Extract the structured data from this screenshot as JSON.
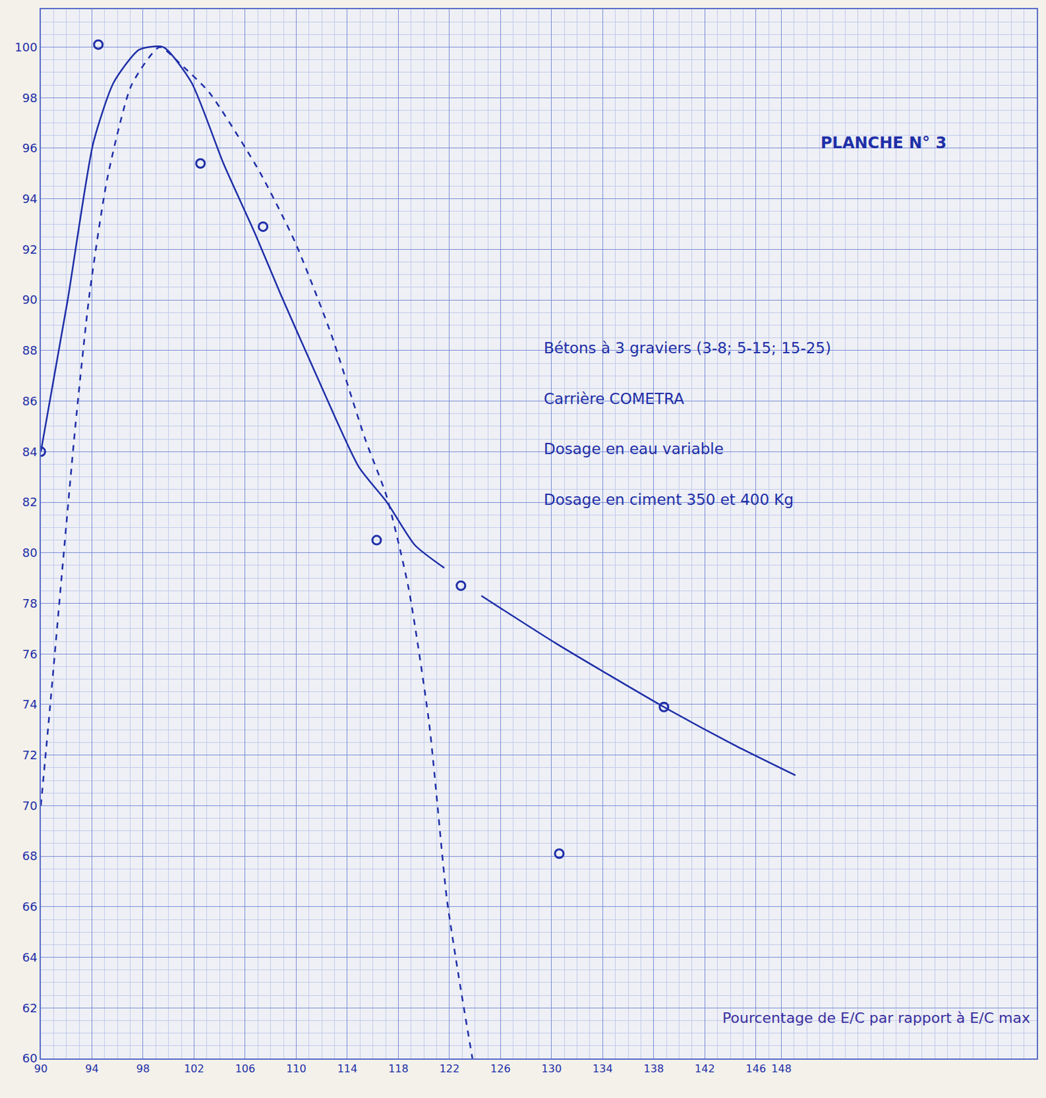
{
  "chart_data": {
    "type": "scatter",
    "title": "PLANCHE N° 3",
    "annotations": [
      "Bétons à 3 graviers (3-8; 5-15; 15-25)",
      "Carrière COMETRA",
      "Dosage en eau variable",
      "Dosage en ciment 350 et 400 Kg"
    ],
    "xlabel": "Pourcentage de E/C par rapport à E/C max",
    "xlim": [
      90,
      168
    ],
    "ylim": [
      60,
      101.5
    ],
    "xticks": [
      90,
      94,
      98,
      102,
      106,
      110,
      114,
      118,
      122,
      126,
      130,
      134,
      138,
      142,
      146,
      148
    ],
    "yticks": [
      60,
      62,
      64,
      66,
      68,
      70,
      72,
      74,
      76,
      78,
      80,
      82,
      84,
      86,
      88,
      90,
      92,
      94,
      96,
      98,
      100
    ],
    "grid": true,
    "series": [
      {
        "type": "scatter",
        "marker": "circle-open",
        "color": "#1f2fa8",
        "x": [
          90,
          94.5,
          102.5,
          107.4,
          116.3,
          122.9,
          138.8,
          130.6
        ],
        "values": [
          84,
          100.1,
          95.4,
          92.9,
          80.5,
          78.7,
          73.9,
          68.1
        ]
      },
      {
        "type": "line",
        "line_style": "solid",
        "color": "#1f2fa8",
        "x": [
          90,
          92.1,
          94.1,
          95.7,
          97.7,
          99.6,
          101.8,
          104.3,
          106.8,
          108.8,
          111.6,
          114.9,
          117.1,
          119.3,
          121.6,
          123,
          124.5,
          130.4,
          138.8,
          144.3,
          149.1
        ],
        "values": [
          84,
          90,
          96.2,
          98.6,
          99.9,
          100,
          98.6,
          95.4,
          92.6,
          90.2,
          87.0,
          83.4,
          82.0,
          80.3,
          79.4,
          null,
          78.3,
          76.4,
          73.9,
          72.4,
          71.2
        ]
      },
      {
        "type": "line",
        "line_style": "dashed",
        "color": "#1f2fa8",
        "x": [
          90,
          90.7,
          91.6,
          92.7,
          93.8,
          95.2,
          97.1,
          99.3,
          101,
          103.2,
          107.1,
          109.9,
          112.7,
          115.4,
          117.1,
          118.8,
          120.4,
          121.8,
          122.9,
          123.8
        ],
        "values": [
          70,
          73.8,
          78.9,
          85.0,
          90.2,
          94.8,
          98.5,
          100,
          99.3,
          98.2,
          95.1,
          92.3,
          88.7,
          84.5,
          82.2,
          78.6,
          73.3,
          66.3,
          62.7,
          60
        ]
      }
    ]
  }
}
